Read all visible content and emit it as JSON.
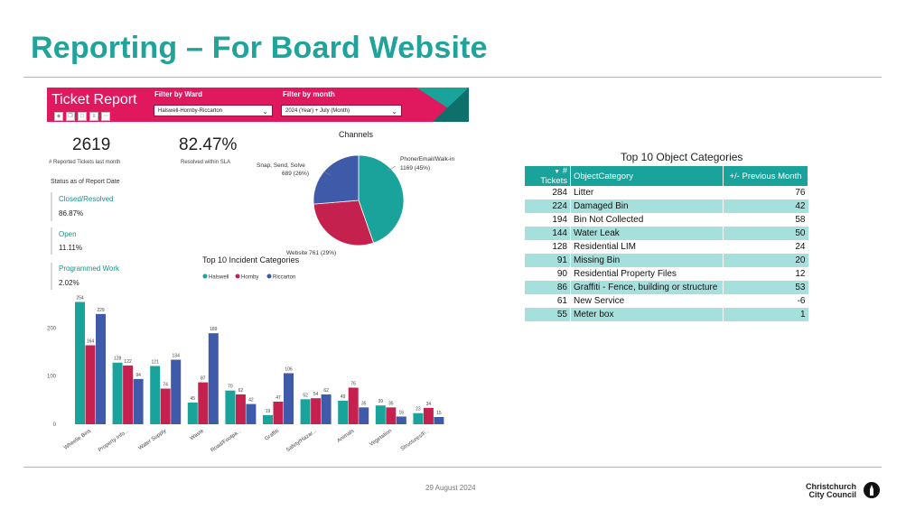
{
  "slide": {
    "title": "Reporting – For Board Website",
    "date": "29 August 2024",
    "logo_line1": "Christchurch",
    "logo_line2": "City Council"
  },
  "dashboard": {
    "title": "Ticket Report",
    "filter_ward": {
      "label": "Filter by Ward",
      "value": "Halswell-Hornby-Riccarton"
    },
    "filter_month": {
      "label": "Filter by month",
      "value": "2024 (Year) + July (Month)"
    },
    "kpis": [
      {
        "value": "2619",
        "label": "# Reported Tickets last month"
      },
      {
        "value": "82.47%",
        "label": "Resolved within SLA"
      }
    ],
    "status": {
      "heading": "Status as of Report Date",
      "items": [
        {
          "label": "Closed/Resolved",
          "value": "86.87%"
        },
        {
          "label": "Open",
          "value": "11.11%"
        },
        {
          "label": "Programmed Work",
          "value": "2.02%"
        }
      ]
    },
    "colors": {
      "halswell": "#1aa39a",
      "hornby": "#c4214f",
      "riccarton": "#3f5aa8",
      "accent": "#e0185e"
    },
    "icons": [
      "pin-icon",
      "copy-icon",
      "comment-icon",
      "filter-icon",
      "more-icon"
    ]
  },
  "chart_data": [
    {
      "type": "pie",
      "title": "Channels",
      "slices": [
        {
          "label": "Phone/Email/Walk-in",
          "value": 1169,
          "pct": "45%",
          "color": "#1aa39a"
        },
        {
          "label": "Website",
          "value": 761,
          "pct": "29%",
          "color": "#c4214f"
        },
        {
          "label": "Snap, Send, Solve",
          "value": 689,
          "pct": "26%",
          "color": "#3f5aa8"
        }
      ],
      "slice_labels": [
        "Phone/Email/Walk-in",
        "1169 (45%)",
        "Website 761 (29%)",
        "Snap, Send, Solve",
        "689 (26%)"
      ]
    },
    {
      "type": "bar",
      "title": "Top 10 Incident Categories",
      "legend": [
        "Halswell",
        "Hornby",
        "Riccarton"
      ],
      "categories": [
        "Wheelie Bins",
        "Property Info...",
        "Water Supply",
        "Waste",
        "Road/Footpa...",
        "Graffiti",
        "Safety/Hazar...",
        "Animals",
        "Vegetation",
        "Structures/F..."
      ],
      "series": [
        {
          "name": "Halswell",
          "values": [
            254,
            128,
            121,
            45,
            70,
            19,
            52,
            49,
            39,
            23
          ]
        },
        {
          "name": "Hornby",
          "values": [
            164,
            122,
            74,
            87,
            62,
            47,
            54,
            76,
            35,
            34
          ]
        },
        {
          "name": "Riccarton",
          "values": [
            229,
            94,
            134,
            189,
            42,
            106,
            62,
            35,
            16,
            15
          ]
        }
      ],
      "yticks": [
        "0",
        "100",
        "200"
      ],
      "ylim": [
        0,
        270
      ]
    }
  ],
  "table": {
    "title": "Top 10 Object Categories",
    "headers": [
      "# Tickets",
      "ObjectCategory",
      "+/- Previous Month"
    ],
    "rows": [
      [
        "284",
        "Litter",
        "76"
      ],
      [
        "224",
        "Damaged Bin",
        "42"
      ],
      [
        "194",
        "Bin Not Collected",
        "58"
      ],
      [
        "144",
        "Water Leak",
        "50"
      ],
      [
        "128",
        "Residential LIM",
        "24"
      ],
      [
        "91",
        "Missing Bin",
        "20"
      ],
      [
        "90",
        "Residential Property Files",
        "12"
      ],
      [
        "86",
        "Graffiti - Fence, building or structure",
        "53"
      ],
      [
        "61",
        "New Service",
        "-6"
      ],
      [
        "55",
        "Meter box",
        "1"
      ]
    ]
  }
}
